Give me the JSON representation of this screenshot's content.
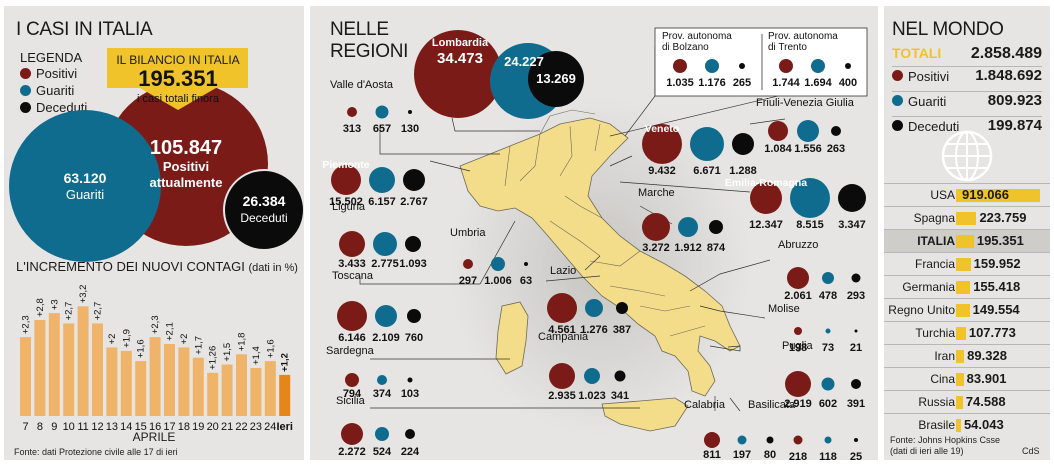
{
  "colors": {
    "positivi": "#7b1b18",
    "guariti": "#0f6c8e",
    "deceduti": "#0b0b0b",
    "accent": "#f0c32a",
    "bar": "#f0b36a",
    "bar_last": "#e5861d"
  },
  "left": {
    "title": "I CASI IN ITALIA",
    "legend_title": "LEGENDA",
    "legend": [
      "Positivi",
      "Guariti",
      "Deceduti"
    ],
    "bilancio": {
      "label": "IL BILANCIO IN ITALIA",
      "value": "195.351",
      "sub": "i casi totali finora"
    },
    "positivi": {
      "value": "105.847",
      "label1": "Positivi",
      "label2": "attualmente"
    },
    "guariti": {
      "value": "63.120",
      "label": "Guariti"
    },
    "deceduti": {
      "value": "26.384",
      "label": "Deceduti"
    },
    "chart_title": "L'INCREMENTO DEI NUOVI CONTAGI",
    "chart_unit": "(dati in %)",
    "chart_xlabel": "APRILE",
    "source": "Fonte: dati Protezione civile alle 17 di ieri"
  },
  "chart_data": {
    "type": "bar",
    "title": "L'INCREMENTO DEI NUOVI CONTAGI",
    "xlabel": "APRILE",
    "ylabel": "(dati in %)",
    "categories": [
      "7",
      "8",
      "9",
      "10",
      "11",
      "12",
      "13",
      "14",
      "15",
      "16",
      "17",
      "18",
      "19",
      "20",
      "21",
      "22",
      "23",
      "24",
      "Ieri"
    ],
    "values": [
      2.3,
      2.8,
      3,
      2.7,
      3.2,
      2.7,
      2,
      1.9,
      1.6,
      2.3,
      2.1,
      2,
      1.7,
      1.26,
      1.5,
      1.8,
      1.4,
      1.6,
      1.2
    ],
    "labels": [
      "+2,3",
      "+2,8",
      "+3",
      "+2,7",
      "+3,2",
      "+2,7",
      "+2",
      "+1,9",
      "+1,6",
      "+2,3",
      "+2,1",
      "+2",
      "+1,7",
      "+1,26",
      "+1,5",
      "+1,8",
      "+1,4",
      "+1,6",
      "+1,2"
    ],
    "ylim": [
      0,
      3.5
    ]
  },
  "mid": {
    "title1": "NELLE",
    "title2": "REGIONI",
    "regions": [
      {
        "name": "Lombardia",
        "p": "34.473",
        "g": "24.227",
        "d": "13.269"
      },
      {
        "name": "Valle d'Aosta",
        "p": "313",
        "g": "657",
        "d": "130"
      },
      {
        "name": "Piemonte",
        "p": "15.502",
        "g": "6.157",
        "d": "2.767"
      },
      {
        "name": "Liguria",
        "p": "3.433",
        "g": "2.775",
        "d": "1.093"
      },
      {
        "name": "Toscana",
        "p": "6.146",
        "g": "2.109",
        "d": "760"
      },
      {
        "name": "Sardegna",
        "p": "794",
        "g": "374",
        "d": "103"
      },
      {
        "name": "Sicilia",
        "p": "2.272",
        "g": "524",
        "d": "224"
      },
      {
        "name": "Umbria",
        "p": "297",
        "g": "1.006",
        "d": "63"
      },
      {
        "name": "Lazio",
        "p": "4.561",
        "g": "1.276",
        "d": "387"
      },
      {
        "name": "Campania",
        "p": "2.935",
        "g": "1.023",
        "d": "341"
      },
      {
        "name": "Marche",
        "p": "3.272",
        "g": "1.912",
        "d": "874"
      },
      {
        "name": "Veneto",
        "p": "9.432",
        "g": "6.671",
        "d": "1.288"
      },
      {
        "name": "Emilia-Romagna",
        "p": "12.347",
        "g": "8.515",
        "d": "3.347"
      },
      {
        "name": "Friuli-Venezia Giulia",
        "p": "1.084",
        "g": "1.556",
        "d": "263"
      },
      {
        "name": "Abruzzo",
        "p": "2.061",
        "g": "478",
        "d": "293"
      },
      {
        "name": "Molise",
        "p": "198",
        "g": "73",
        "d": "21"
      },
      {
        "name": "Puglia",
        "p": "2.919",
        "g": "602",
        "d": "391"
      },
      {
        "name": "Calabria",
        "p": "811",
        "g": "197",
        "d": "80"
      },
      {
        "name": "Basilicata",
        "p": "218",
        "g": "118",
        "d": "25"
      }
    ],
    "bolzano": {
      "name1": "Prov. autonoma",
      "name2": "di Bolzano",
      "p": "1.035",
      "g": "1.176",
      "d": "265"
    },
    "trento": {
      "name1": "Prov. autonoma",
      "name2": "di Trento",
      "p": "1.744",
      "g": "1.694",
      "d": "400"
    }
  },
  "right": {
    "title": "NEL MONDO",
    "totali_label": "TOTALI",
    "totali": "2.858.489",
    "positivi_label": "Positivi",
    "positivi": "1.848.692",
    "guariti_label": "Guariti",
    "guariti": "809.923",
    "deceduti_label": "Deceduti",
    "deceduti": "199.874",
    "countries": [
      {
        "name": "USA",
        "value": "919.066",
        "n": 919066
      },
      {
        "name": "Spagna",
        "value": "223.759",
        "n": 223759
      },
      {
        "name": "ITALIA",
        "value": "195.351",
        "n": 195351,
        "highlight": true
      },
      {
        "name": "Francia",
        "value": "159.952",
        "n": 159952
      },
      {
        "name": "Germania",
        "value": "155.418",
        "n": 155418
      },
      {
        "name": "Regno Unito",
        "value": "149.554",
        "n": 149554
      },
      {
        "name": "Turchia",
        "value": "107.773",
        "n": 107773
      },
      {
        "name": "Iran",
        "value": "89.328",
        "n": 89328
      },
      {
        "name": "Cina",
        "value": "83.901",
        "n": 83901
      },
      {
        "name": "Russia",
        "value": "74.588",
        "n": 74588
      },
      {
        "name": "Brasile",
        "value": "54.043",
        "n": 54043
      }
    ],
    "source1": "Fonte: Johns Hopkins Csse",
    "source2": "(dati di ieri alle 19)",
    "credit": "CdS"
  }
}
